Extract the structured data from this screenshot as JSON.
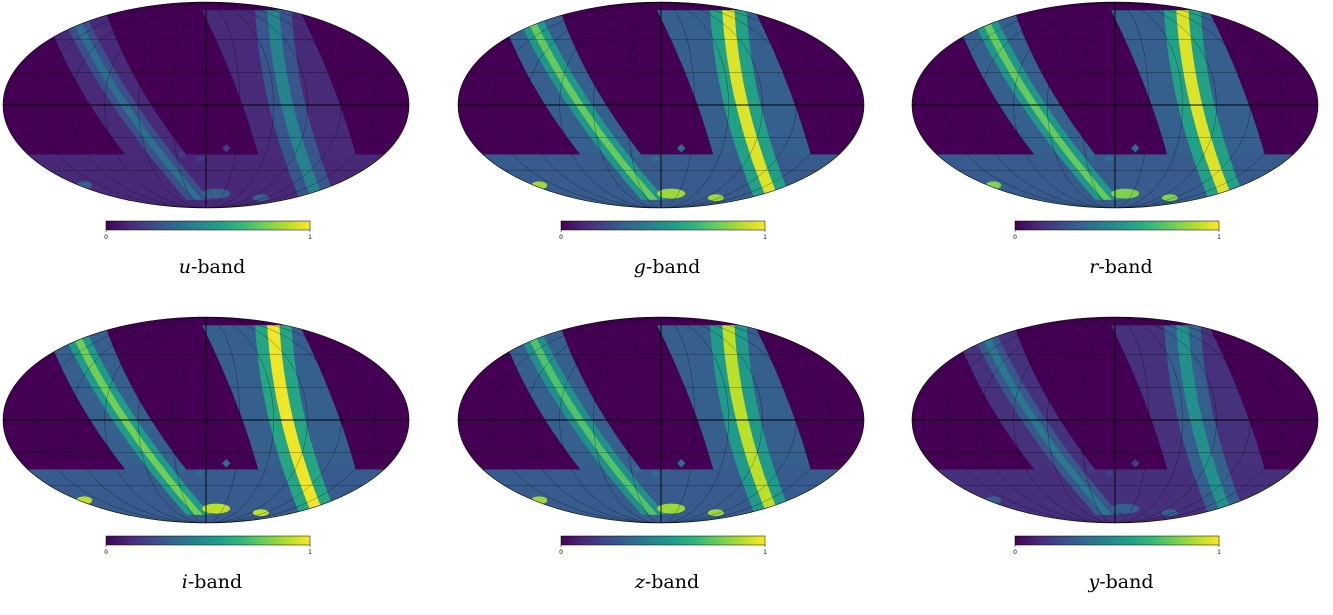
{
  "colormap": [
    "#440154",
    "#482878",
    "#3e4989",
    "#31688e",
    "#26828e",
    "#1f9e89",
    "#35b779",
    "#6ece58",
    "#b5de2b",
    "#fde725"
  ],
  "chart_data": [
    {
      "type": "heatmap",
      "projection": "mollweide",
      "band_letter": "u",
      "caption_suffix": "-band",
      "colorbar": {
        "min": 0,
        "max": 1,
        "tick_labels": [
          "0",
          "1"
        ]
      },
      "footprint_level": 0.12,
      "stripe_peak": 0.45,
      "blob_peak": 0.3
    },
    {
      "type": "heatmap",
      "projection": "mollweide",
      "band_letter": "g",
      "caption_suffix": "-band",
      "colorbar": {
        "min": 0,
        "max": 1,
        "tick_labels": [
          "0",
          "1"
        ]
      },
      "footprint_level": 0.3,
      "stripe_peak": 0.95,
      "blob_peak": 0.85
    },
    {
      "type": "heatmap",
      "projection": "mollweide",
      "band_letter": "r",
      "caption_suffix": "-band",
      "colorbar": {
        "min": 0,
        "max": 1,
        "tick_labels": [
          "0",
          "1"
        ]
      },
      "footprint_level": 0.3,
      "stripe_peak": 0.95,
      "blob_peak": 0.8
    },
    {
      "type": "heatmap",
      "projection": "mollweide",
      "band_letter": "i",
      "caption_suffix": "-band",
      "colorbar": {
        "min": 0,
        "max": 1,
        "tick_labels": [
          "0",
          "1"
        ]
      },
      "footprint_level": 0.3,
      "stripe_peak": 0.98,
      "blob_peak": 0.9
    },
    {
      "type": "heatmap",
      "projection": "mollweide",
      "band_letter": "z",
      "caption_suffix": "-band",
      "colorbar": {
        "min": 0,
        "max": 1,
        "tick_labels": [
          "0",
          "1"
        ]
      },
      "footprint_level": 0.3,
      "stripe_peak": 0.9,
      "blob_peak": 0.85
    },
    {
      "type": "heatmap",
      "projection": "mollweide",
      "band_letter": "y",
      "caption_suffix": "-band",
      "colorbar": {
        "min": 0,
        "max": 1,
        "tick_labels": [
          "0",
          "1"
        ]
      },
      "footprint_level": 0.14,
      "stripe_peak": 0.5,
      "blob_peak": 0.3
    }
  ]
}
